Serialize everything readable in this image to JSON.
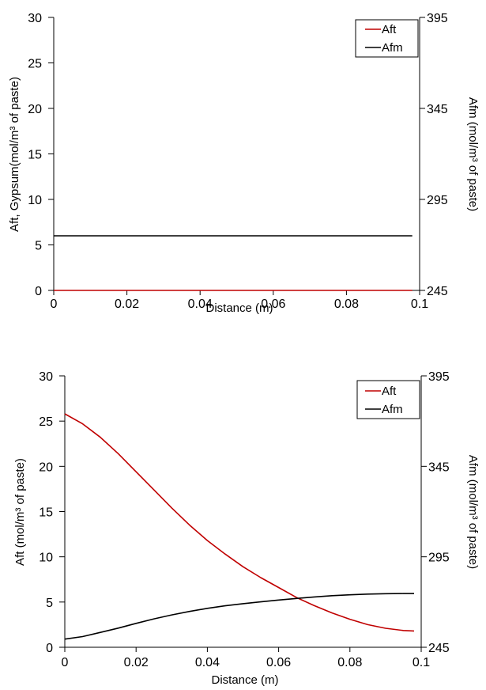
{
  "colors": {
    "aft": "#c00000",
    "afm": "#000000",
    "axis": "#000000",
    "background": "#ffffff"
  },
  "chart_data": [
    {
      "type": "line",
      "xlabel": "Distance (m)",
      "ylabel": "Aft, Gypsum(mol/m³ of paste)",
      "y2label": "Afm (mol/m³ of paste)",
      "xlim": [
        0,
        0.1
      ],
      "ylim": [
        0,
        30
      ],
      "y2lim": [
        245,
        395
      ],
      "xticks": [
        "0",
        "0.02",
        "0.04",
        "0.06",
        "0.08",
        "0.1"
      ],
      "yticks": [
        "0",
        "5",
        "10",
        "15",
        "20",
        "25",
        "30"
      ],
      "y2ticks": [
        "245",
        "295",
        "345",
        "395"
      ],
      "grid": false,
      "legend_position": "top-right",
      "series": [
        {
          "name": "Aft",
          "axis": "left",
          "color": "#c00000",
          "x": [
            0,
            0.098
          ],
          "y": [
            0,
            0
          ]
        },
        {
          "name": "Afm",
          "axis": "right",
          "color": "#000000",
          "x": [
            0,
            0.098
          ],
          "y": [
            275,
            275
          ]
        }
      ]
    },
    {
      "type": "line",
      "xlabel": "Distance (m)",
      "ylabel": "Aft (mol/m³ of paste)",
      "y2label": "Afm (mol/m³ of paste)",
      "xlim": [
        0,
        0.1
      ],
      "ylim": [
        0,
        30
      ],
      "y2lim": [
        245,
        395
      ],
      "xticks": [
        "0",
        "0.02",
        "0.04",
        "0.06",
        "0.08",
        "0.1"
      ],
      "yticks": [
        "0",
        "5",
        "10",
        "15",
        "20",
        "25",
        "30"
      ],
      "y2ticks": [
        "245",
        "295",
        "345",
        "395"
      ],
      "grid": false,
      "legend_position": "top-right",
      "series": [
        {
          "name": "Aft",
          "axis": "left",
          "color": "#c00000",
          "x": [
            0,
            0.005,
            0.01,
            0.015,
            0.02,
            0.025,
            0.03,
            0.035,
            0.04,
            0.045,
            0.05,
            0.055,
            0.06,
            0.065,
            0.07,
            0.075,
            0.08,
            0.085,
            0.09,
            0.095,
            0.098
          ],
          "y": [
            25.8,
            24.7,
            23.2,
            21.4,
            19.4,
            17.4,
            15.4,
            13.5,
            11.8,
            10.3,
            8.9,
            7.7,
            6.6,
            5.5,
            4.6,
            3.8,
            3.1,
            2.5,
            2.1,
            1.85,
            1.8
          ]
        },
        {
          "name": "Afm",
          "axis": "right",
          "color": "#000000",
          "x": [
            0,
            0.005,
            0.01,
            0.015,
            0.02,
            0.025,
            0.03,
            0.035,
            0.04,
            0.045,
            0.05,
            0.055,
            0.06,
            0.065,
            0.07,
            0.075,
            0.08,
            0.085,
            0.09,
            0.095,
            0.098
          ],
          "y": [
            249.5,
            250.9,
            253.2,
            255.6,
            258.2,
            260.7,
            262.9,
            264.8,
            266.5,
            267.9,
            269.1,
            270.1,
            271.1,
            272.0,
            272.8,
            273.5,
            274.0,
            274.4,
            274.6,
            274.7,
            274.7
          ]
        }
      ]
    }
  ]
}
